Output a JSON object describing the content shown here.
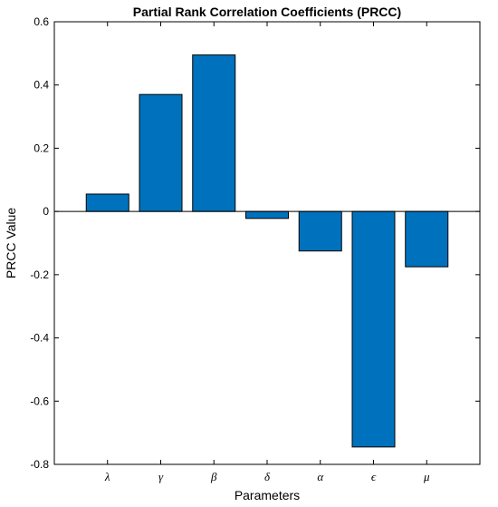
{
  "chart_data": {
    "type": "bar",
    "title": "Partial Rank Correlation Coefficients (PRCC)",
    "xlabel": "Parameters",
    "ylabel": "PRCC Value",
    "categories": [
      "λ",
      "γ",
      "β",
      "δ",
      "α",
      "ϵ",
      "μ"
    ],
    "values": [
      0.055,
      0.37,
      0.495,
      -0.022,
      -0.125,
      -0.745,
      -0.175
    ],
    "ylim": [
      -0.8,
      0.6
    ],
    "yticks": [
      -0.8,
      -0.6,
      -0.4,
      -0.2,
      0,
      0.2,
      0.4,
      0.6
    ],
    "ytick_labels": [
      "-0.8",
      "-0.6",
      "-0.4",
      "-0.2",
      "0",
      "0.2",
      "0.4",
      "0.6"
    ],
    "grid": false,
    "bar_color": "#0072BD"
  }
}
